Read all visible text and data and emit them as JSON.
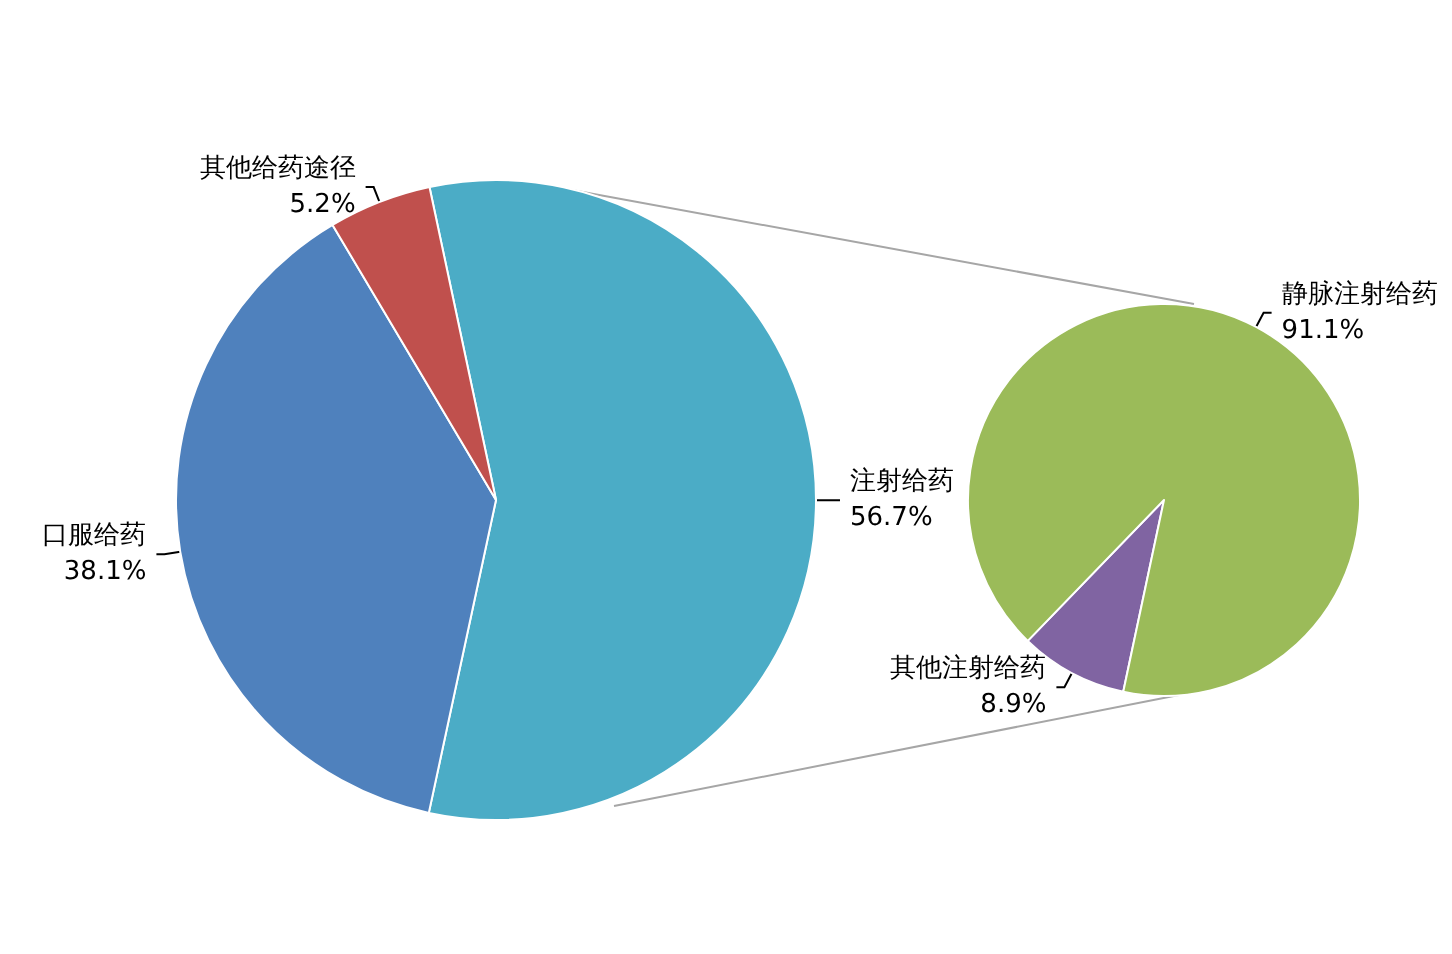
{
  "chart_data": [
    {
      "type": "pie",
      "categories": [
        "注射给药",
        "口服给药",
        "其他给药途径"
      ],
      "values": [
        56.7,
        38.1,
        5.2
      ],
      "value_labels": [
        "56.7%",
        "38.1%",
        "5.2%"
      ],
      "colors": [
        "#4bacc6",
        "#4f81bd",
        "#c0504d"
      ]
    },
    {
      "type": "pie",
      "categories": [
        "其他注射给药",
        "静脉注射给药"
      ],
      "values": [
        8.9,
        91.1
      ],
      "value_labels": [
        "8.9%",
        "91.1%"
      ],
      "colors": [
        "#8064a2",
        "#9bbb59"
      ]
    }
  ]
}
